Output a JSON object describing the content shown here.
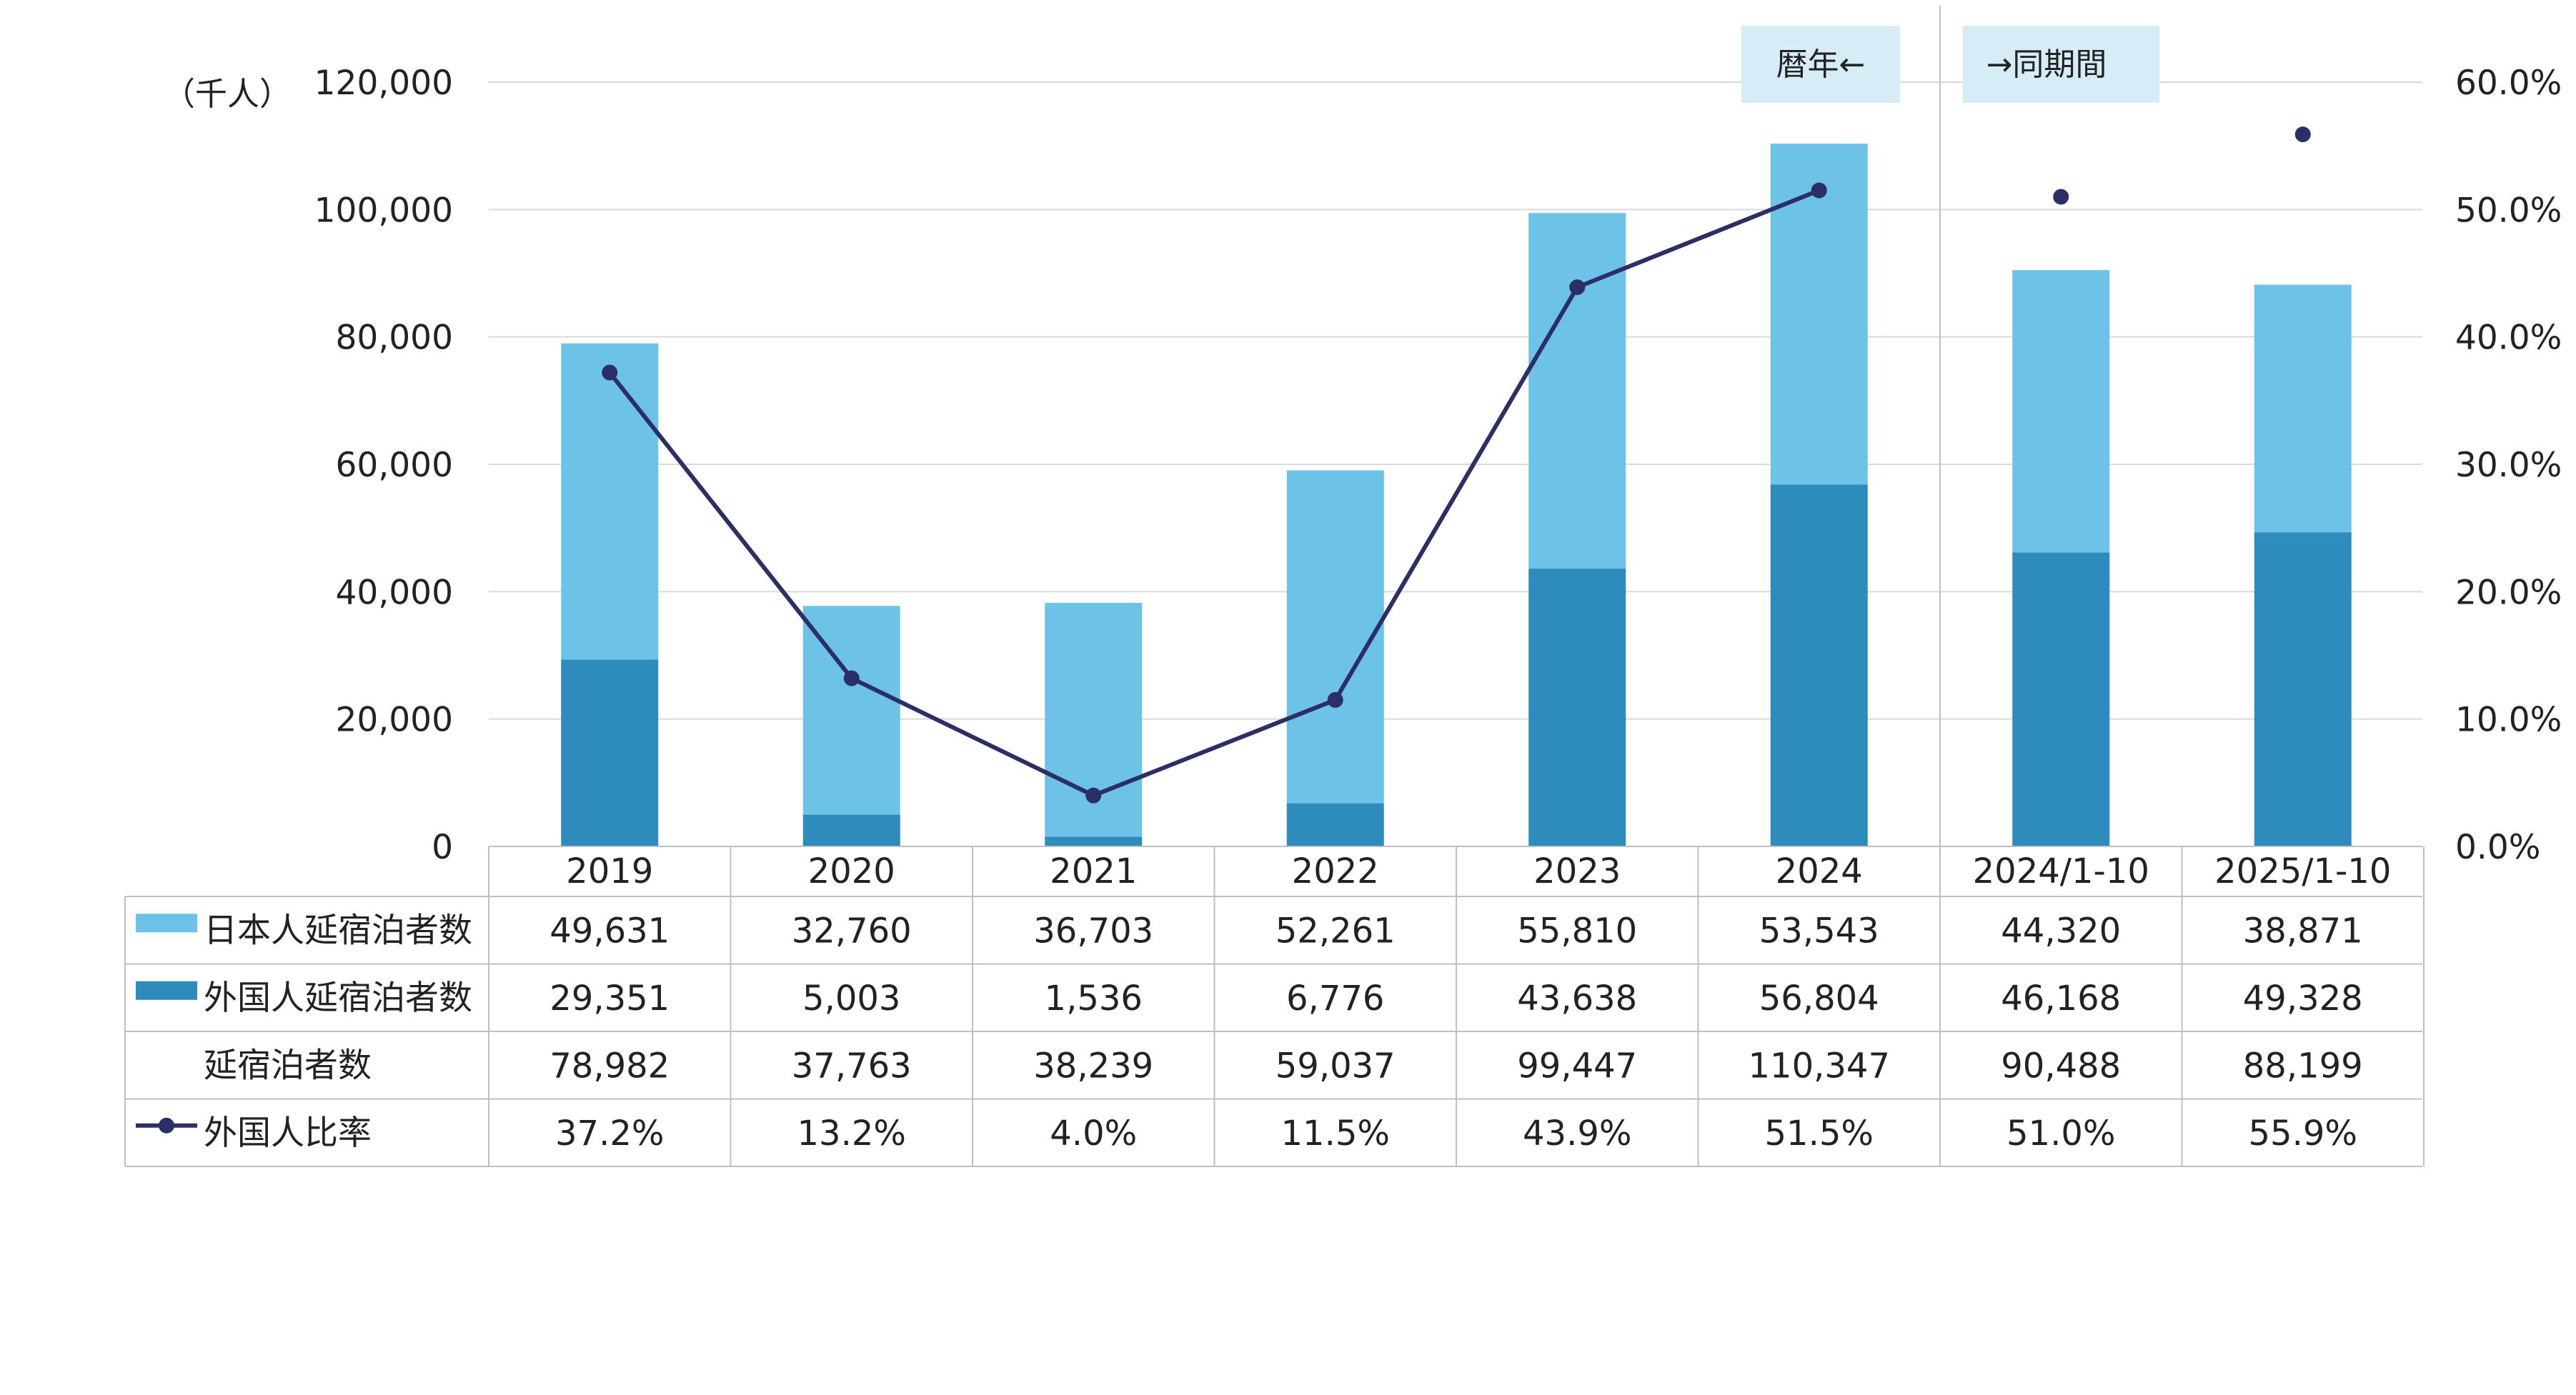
{
  "chart_data": {
    "type": "bar",
    "stacked": true,
    "categories": [
      "2019",
      "2020",
      "2021",
      "2022",
      "2023",
      "2024",
      "2024/1-10",
      "2025/1-10"
    ],
    "series": [
      {
        "name": "日本人延宿泊者数",
        "kind": "bar",
        "axis": "left",
        "color": "#6CC3E7",
        "values": [
          49631,
          32760,
          36703,
          52261,
          55810,
          53543,
          44320,
          38871
        ],
        "labels": [
          "49,631",
          "32,760",
          "36,703",
          "52,261",
          "55,810",
          "53,543",
          "44,320",
          "38,871"
        ]
      },
      {
        "name": "外国人延宿泊者数",
        "kind": "bar",
        "axis": "left",
        "color": "#2D8CBC",
        "values": [
          29351,
          5003,
          1536,
          6776,
          43638,
          56804,
          46168,
          49328
        ],
        "labels": [
          "29,351",
          "5,003",
          "1,536",
          "6,776",
          "43,638",
          "56,804",
          "46,168",
          "49,328"
        ]
      },
      {
        "name": "延宿泊者数",
        "kind": "total",
        "values": [
          78982,
          37763,
          38239,
          59037,
          99447,
          110347,
          90488,
          88199
        ],
        "labels": [
          "78,982",
          "37,763",
          "38,239",
          "59,037",
          "99,447",
          "110,347",
          "90,488",
          "88,199"
        ]
      },
      {
        "name": "外国人比率",
        "kind": "line",
        "axis": "right",
        "color": "#2B2F66",
        "values": [
          37.2,
          13.2,
          4.0,
          11.5,
          43.9,
          51.5,
          51.0,
          55.9
        ],
        "labels": [
          "37.2%",
          "13.2%",
          "4.0%",
          "11.5%",
          "43.9%",
          "51.5%",
          "51.0%",
          "55.9%"
        ],
        "connected_through_index": 5
      }
    ],
    "left_axis": {
      "unit_label": "（千人）",
      "ylim": [
        0,
        120000
      ],
      "ticks": [
        0,
        20000,
        40000,
        60000,
        80000,
        100000,
        120000
      ],
      "tick_labels": [
        "0",
        "20,000",
        "40,000",
        "60,000",
        "80,000",
        "100,000",
        "120,000"
      ]
    },
    "right_axis": {
      "ylim": [
        0,
        60
      ],
      "ticks": [
        0,
        10,
        20,
        30,
        40,
        50,
        60
      ],
      "tick_labels": [
        "0.0%",
        "10.0%",
        "20.0%",
        "30.0%",
        "40.0%",
        "50.0%",
        "60.0%"
      ]
    },
    "annotations": {
      "calendar_year": "暦年←",
      "same_period": "→同期間"
    },
    "divider_after_index": 5,
    "grid": true,
    "legend": "data-table",
    "colors": {
      "grid": "#D9D9D9",
      "table_border": "#BFBFBF",
      "note_bg": "#D6ECF7",
      "divider": "#BFBFBF"
    }
  }
}
